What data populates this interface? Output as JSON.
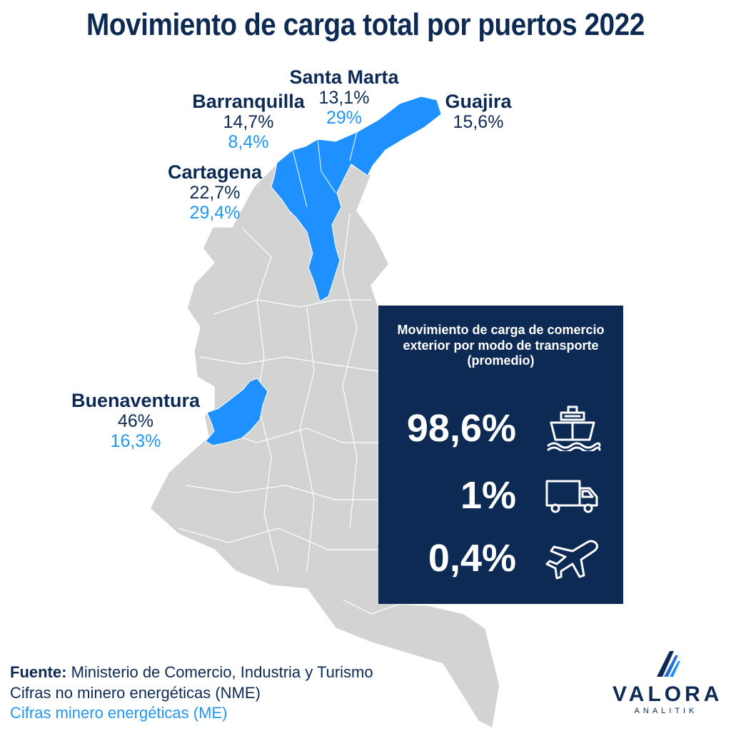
{
  "title": "Movimiento de carga total por puertos 2022",
  "colors": {
    "navy": "#0d2a55",
    "highlight_blue": "#1e90ff",
    "me_text_blue": "#2196f3",
    "land_gray": "#d3d3d3",
    "border_white": "#ffffff"
  },
  "ports": [
    {
      "name": "Santa Marta",
      "nme": "13,1%",
      "me": "29%"
    },
    {
      "name": "Barranquilla",
      "nme": "14,7%",
      "me": "8,4%"
    },
    {
      "name": "Guajira",
      "nme": "15,6%",
      "me": ""
    },
    {
      "name": "Cartagena",
      "nme": "22,7%",
      "me": "29,4%"
    },
    {
      "name": "Buenaventura",
      "nme": "46%",
      "me": "16,3%"
    }
  ],
  "panel": {
    "title": "Movimiento de carga de comercio exterior por modo de transporte (promedio)",
    "modes": [
      {
        "value": "98,6%",
        "icon": "ship-icon"
      },
      {
        "value": "1%",
        "icon": "truck-icon"
      },
      {
        "value": "0,4%",
        "icon": "airplane-icon"
      }
    ]
  },
  "source": {
    "label": "Fuente:",
    "text": "Ministerio de Comercio, Industria y Turismo",
    "nme_line": "Cifras no minero energéticas (NME)",
    "me_line": "Cifras minero energéticas (ME)"
  },
  "logo": {
    "brand": "VALORA",
    "sub": "ANALITIK"
  }
}
